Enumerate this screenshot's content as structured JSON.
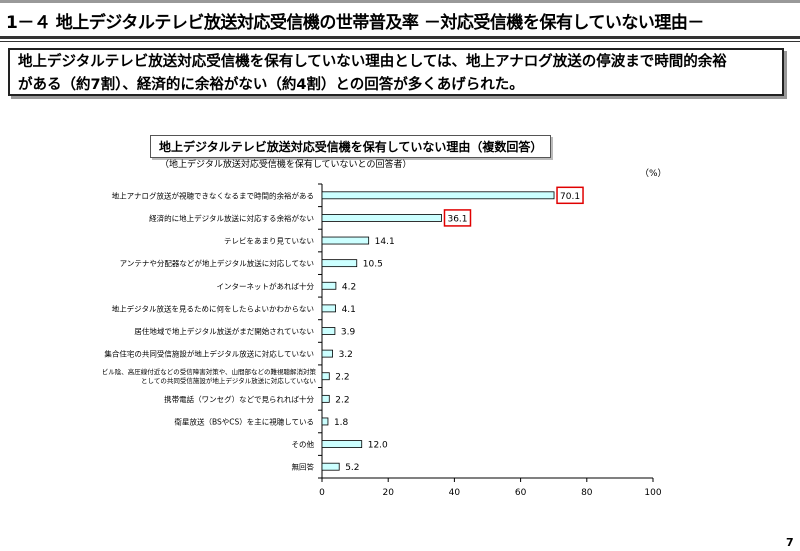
{
  "header": {
    "title": "1－４ 地上デジタルテレビ放送対応受信機の世帯普及率 －対応受信機を保有していない理由－"
  },
  "summary": {
    "line1": "地上デジタルテレビ放送対応受信機を保有していない理由としては、地上アナログ放送の停波まで時間的余裕",
    "line2": "がある（約7割）、経済的に余裕がない（約4割）との回答が多くあげられた。"
  },
  "page_number": "7",
  "chart_data": {
    "type": "bar",
    "orientation": "horizontal",
    "title": "地上デジタルテレビ放送対応受信機を保有していない理由（複数回答）",
    "subtitle": "（地上デジタル放送対応受信機を保有していないとの回答者）",
    "unit_label": "（%）",
    "categories": [
      "地上アナログ放送が視聴できなくなるまで時間的余裕がある",
      "経済的に地上デジタル放送に対応する余裕がない",
      "テレビをあまり見ていない",
      "アンテナや分配器などが地上デジタル放送に対応してない",
      "インターネットがあれば十分",
      "地上デジタル放送を見るために何をしたらよいかわからない",
      "居住地域で地上デジタル放送がまだ開始されていない",
      "集合住宅の共同受信施設が地上デジタル放送に対応していない",
      "ビル陰、高圧線付近などの受信障害対策や、山間部などの難視聴解消対策としての共同受信施設が地上デジタル放送に対応していない",
      "携帯電話（ワンセグ）などで見られれば十分",
      "衛星放送（BSやCS）を主に視聴している",
      "その他",
      "無回答"
    ],
    "values": [
      70.1,
      36.1,
      14.1,
      10.5,
      4.2,
      4.1,
      3.9,
      3.2,
      2.2,
      2.2,
      1.8,
      12.0,
      5.2
    ],
    "highlighted": [
      0,
      1
    ],
    "xlim": [
      0,
      100
    ],
    "xticks": [
      0,
      20,
      40,
      60,
      80,
      100
    ],
    "bar_color": "#ccffff",
    "highlight_color": "#e00000"
  }
}
